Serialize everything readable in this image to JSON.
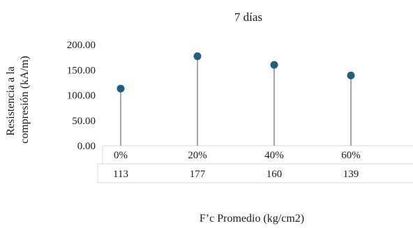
{
  "chart_data": {
    "type": "scatter",
    "title": "7 días",
    "xlabel": "F’c Promedio (kg/cm2)",
    "ylabel_lines": [
      "Resistencia a la",
      "compresión (kA/m)"
    ],
    "categories": [
      "0%",
      "20%",
      "40%",
      "60%"
    ],
    "values": [
      113,
      177,
      160,
      139
    ],
    "table_values": [
      "113",
      "177",
      "160",
      "139"
    ],
    "yticks": [
      "0.00",
      "50.00",
      "100.00",
      "150.00",
      "200.00"
    ],
    "ylim": [
      0,
      200
    ],
    "grid": false,
    "legend": "none",
    "marker_color": "#1f5f7f",
    "stem_color": "#a6a6a6"
  }
}
